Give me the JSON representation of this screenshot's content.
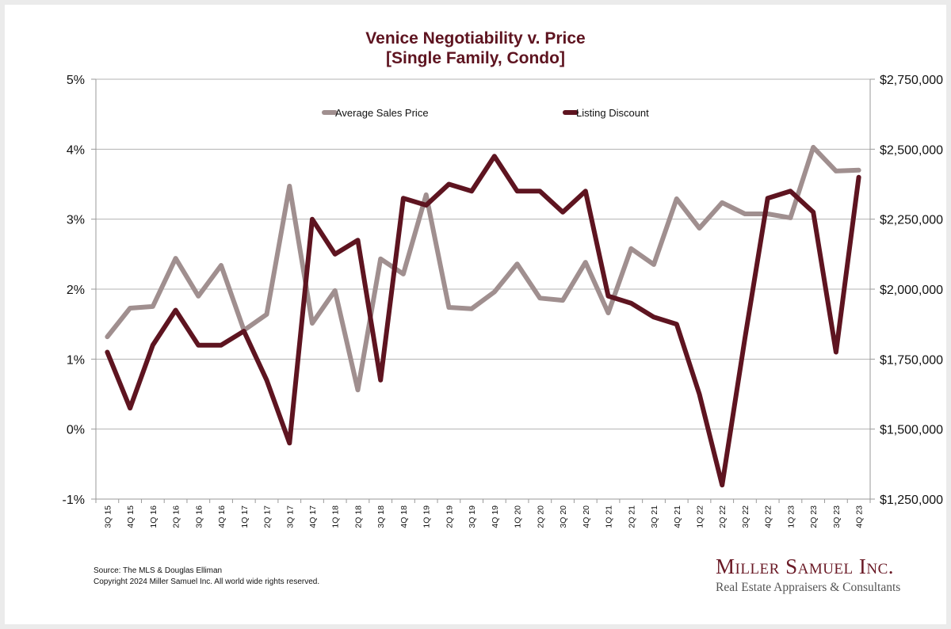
{
  "chart_data": {
    "type": "line",
    "title": "Venice Negotiability v. Price",
    "subtitle": "[Single Family, Condo]",
    "xlabel": "",
    "ylabel_left": "",
    "ylabel_right": "",
    "categories": [
      "3Q 15",
      "4Q 15",
      "1Q 16",
      "2Q 16",
      "3Q 16",
      "4Q 16",
      "1Q 17",
      "2Q 17",
      "3Q 17",
      "4Q 17",
      "1Q 18",
      "2Q 18",
      "3Q 18",
      "4Q 18",
      "1Q 19",
      "2Q 19",
      "3Q 19",
      "4Q 19",
      "1Q 20",
      "2Q 20",
      "3Q 20",
      "4Q 20",
      "1Q 21",
      "2Q 21",
      "3Q 21",
      "4Q 21",
      "1Q 22",
      "2Q 22",
      "3Q 22",
      "4Q 22",
      "1Q 23",
      "2Q 23",
      "3Q 23",
      "4Q 23"
    ],
    "left_axis": {
      "ylim": [
        -1,
        5
      ],
      "ticks": [
        -1,
        0,
        1,
        2,
        3,
        4,
        5
      ],
      "tick_labels": [
        "-1%",
        "0%",
        "1%",
        "2%",
        "3%",
        "4%",
        "5%"
      ]
    },
    "right_axis": {
      "ylim": [
        1250000,
        2750000
      ],
      "ticks": [
        1250000,
        1500000,
        1750000,
        2000000,
        2250000,
        2500000,
        2750000
      ],
      "tick_labels": [
        "$1,250,000",
        "$1,500,000",
        "$1,750,000",
        "$2,000,000",
        "$2,250,000",
        "$2,500,000",
        "$2,750,000"
      ]
    },
    "grid": true,
    "legend_position": "top-center",
    "series": [
      {
        "name": "Average Sales Price",
        "axis": "right",
        "color": "#a08f8f",
        "values": [
          1830000,
          1932000,
          1938000,
          2110000,
          1975000,
          2085000,
          1853000,
          1910000,
          2368000,
          1878000,
          1995000,
          1640000,
          2108000,
          2054000,
          2337000,
          1935000,
          1930000,
          1990000,
          2090000,
          1968000,
          1960000,
          2096000,
          1915000,
          2145000,
          2088000,
          2323000,
          2218000,
          2309000,
          2269000,
          2269000,
          2255000,
          2507000,
          2422000,
          2425000
        ]
      },
      {
        "name": "Listing Discount",
        "axis": "left",
        "color": "#5e1420",
        "values": [
          1.1,
          0.3,
          1.2,
          1.7,
          1.2,
          1.2,
          1.4,
          0.7,
          -0.2,
          3.0,
          2.5,
          2.7,
          0.7,
          3.3,
          3.2,
          3.5,
          3.4,
          3.9,
          3.4,
          3.4,
          3.1,
          3.4,
          1.9,
          1.8,
          1.6,
          1.5,
          0.5,
          -0.8,
          1.3,
          3.3,
          3.4,
          3.1,
          1.1,
          3.6
        ]
      }
    ]
  },
  "footer": {
    "source": "Source: The MLS & Douglas Elliman",
    "copyright": "Copyright 2024 Miller Samuel Inc.  All world wide rights reserved."
  },
  "brand": {
    "name": "Miller Samuel Inc.",
    "tagline": "Real Estate Appraisers & Consultants"
  },
  "colors": {
    "title": "#5e1420",
    "grid": "#b3b3b3",
    "axis": "#9a9a9a"
  }
}
